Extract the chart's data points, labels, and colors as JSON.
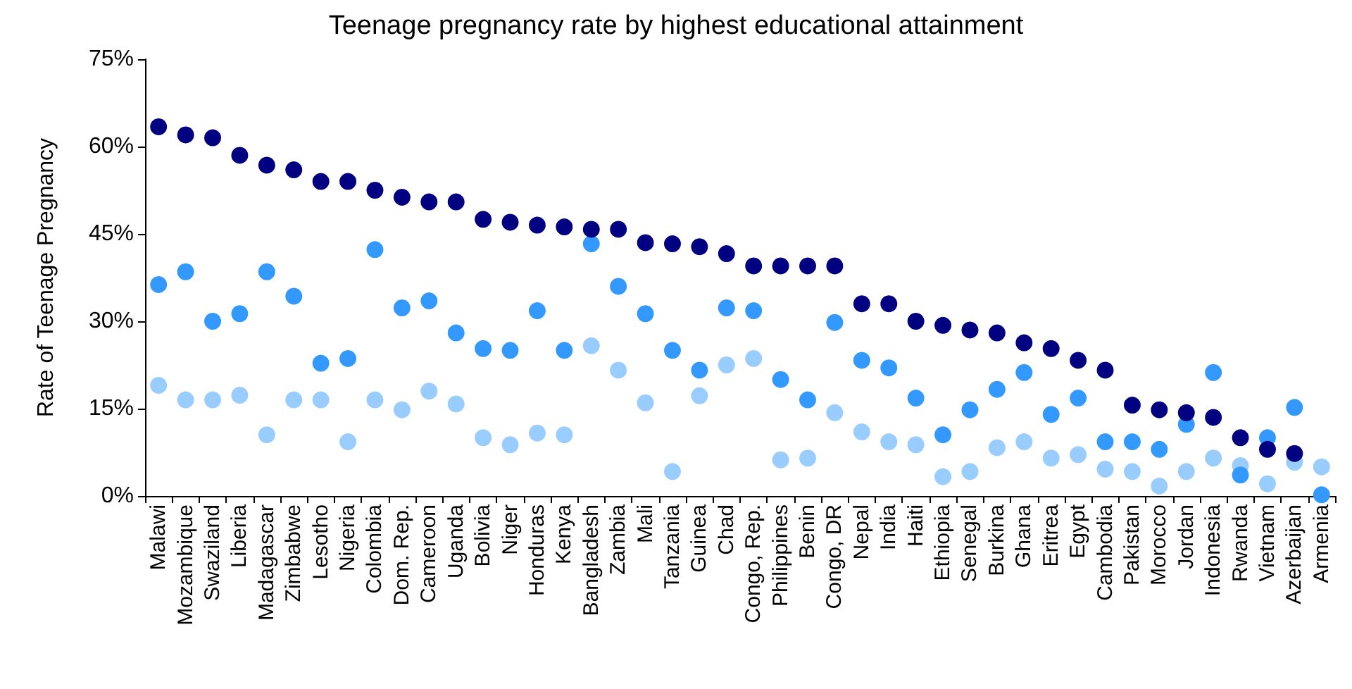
{
  "chart_data": {
    "type": "scatter",
    "title": "Teenage pregnancy rate by highest educational attainment",
    "ylabel": "Rate of Teenage Pregnancy",
    "categories": [
      "Malawi",
      "Mozambique",
      "Swaziland",
      "Liberia",
      "Madagascar",
      "Zimbabwe",
      "Lesotho",
      "Nigeria",
      "Colombia",
      "Dom. Rep.",
      "Cameroon",
      "Uganda",
      "Bolivia",
      "Niger",
      "Honduras",
      "Kenya",
      "Bangladesh",
      "Zambia",
      "Mali",
      "Tanzania",
      "Guinea",
      "Chad",
      "Congo, Rep.",
      "Philippines",
      "Benin",
      "Congo, DR",
      "Nepal",
      "India",
      "Haiti",
      "Ethiopia",
      "Senegal",
      "Burkina",
      "Ghana",
      "Eritrea",
      "Egypt",
      "Cambodia",
      "Pakistan",
      "Morocco",
      "Jordan",
      "Indonesia",
      "Rwanda",
      "Vietnam",
      "Azerbaijan",
      "Armenia"
    ],
    "series": [
      {
        "color": "#99ccff",
        "values": [
          19,
          16.5,
          16.5,
          17.3,
          10.5,
          16.5,
          16.5,
          9.3,
          16.5,
          14.8,
          18,
          15.8,
          10,
          8.8,
          10.8,
          10.5,
          25.8,
          21.6,
          16,
          4.2,
          17.2,
          22.5,
          23.6,
          6.2,
          6.5,
          14.3,
          11,
          9.3,
          8.8,
          3.3,
          4.2,
          8.3,
          9.3,
          6.5,
          7.1,
          4.6,
          4.2,
          1.7,
          4.2,
          6.5,
          5.2,
          2.1,
          5.8,
          5
        ]
      },
      {
        "color": "#3399ff",
        "values": [
          36.3,
          38.5,
          30,
          31.3,
          38.5,
          34.3,
          22.8,
          23.6,
          42.3,
          32.3,
          33.5,
          28,
          25.3,
          25,
          31.8,
          25,
          43.3,
          36,
          31.3,
          25,
          21.6,
          32.3,
          31.8,
          20,
          16.5,
          29.8,
          23.3,
          22,
          16.8,
          10.5,
          14.8,
          18.3,
          21.2,
          14,
          16.8,
          9.3,
          9.3,
          8,
          12.3,
          21.2,
          3.6,
          10,
          15.2,
          0.2
        ]
      },
      {
        "color": "#000080",
        "values": [
          63.4,
          62,
          61.5,
          58.5,
          56.8,
          56,
          54,
          54,
          52.5,
          51.3,
          50.5,
          50.5,
          47.5,
          47,
          46.5,
          46.2,
          45.8,
          45.8,
          43.5,
          43.3,
          42.8,
          41.6,
          39.5,
          39.5,
          39.5,
          39.5,
          33,
          33,
          30,
          29.3,
          28.5,
          28,
          26.3,
          25.3,
          23.3,
          21.6,
          15.6,
          14.8,
          14.3,
          13.5,
          10,
          8,
          7.3,
          null
        ]
      }
    ],
    "ylim": [
      0,
      75
    ],
    "yticks": [
      {
        "value": 0,
        "label": "0%"
      },
      {
        "value": 15,
        "label": "15%"
      },
      {
        "value": 30,
        "label": "30%"
      },
      {
        "value": 45,
        "label": "45%"
      },
      {
        "value": 60,
        "label": "60%"
      },
      {
        "value": 75,
        "label": "75%"
      }
    ],
    "grid": false,
    "marker": "circle"
  }
}
